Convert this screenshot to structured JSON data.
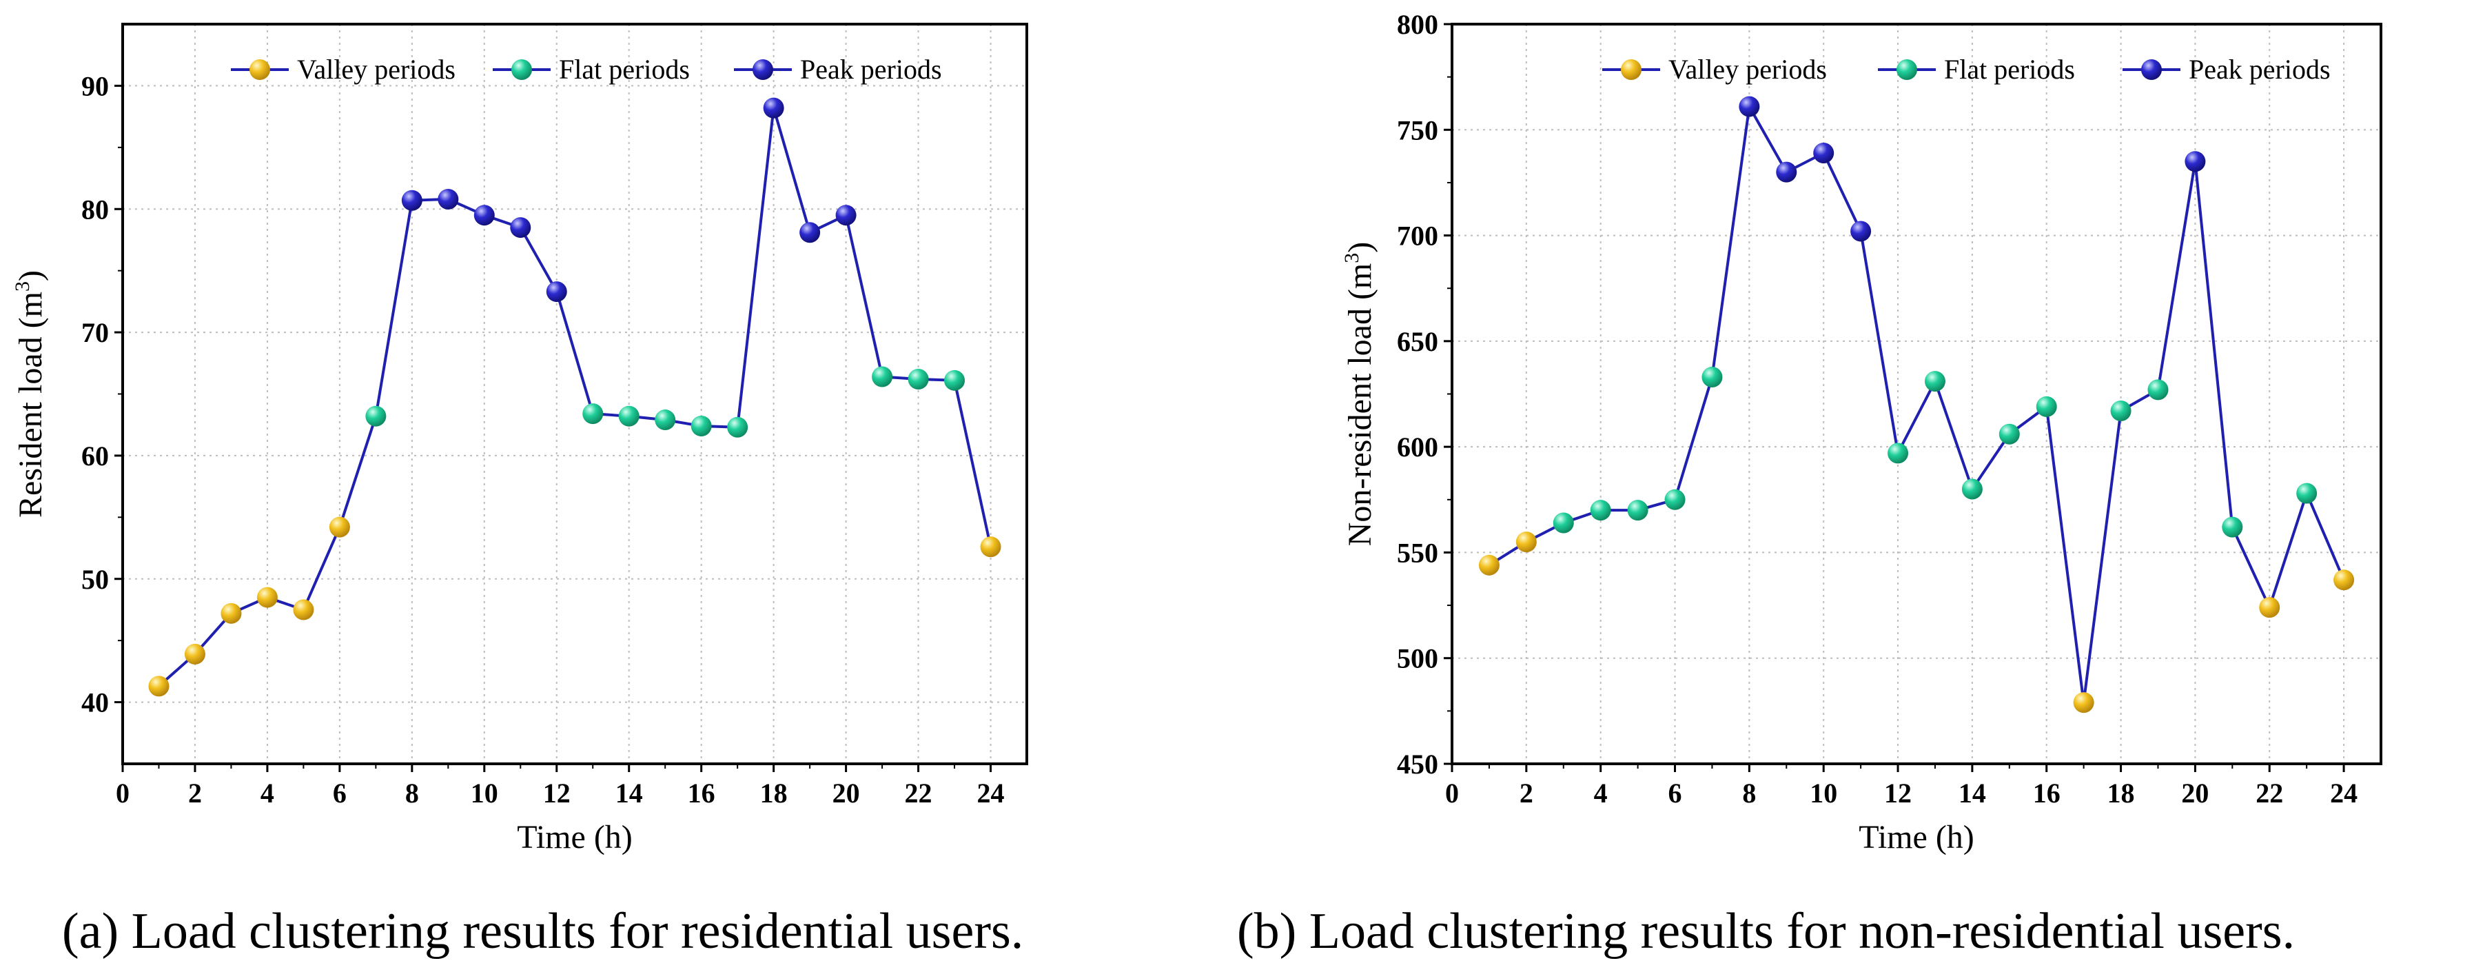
{
  "chart_data": [
    {
      "type": "line",
      "panel": "a",
      "caption": "(a) Load clustering results for residential users.",
      "xlabel": "Time (h)",
      "ylabel": "Resident load (m",
      "ylabel_sup": "3",
      "ylabel_end": ")",
      "xlim": [
        0,
        25
      ],
      "ylim": [
        35,
        95
      ],
      "xticks": [
        0,
        2,
        4,
        6,
        8,
        10,
        12,
        14,
        16,
        18,
        20,
        22,
        24
      ],
      "yticks": [
        40,
        50,
        60,
        70,
        80,
        90
      ],
      "grid": true,
      "legend_position": "top-right",
      "legend": [
        {
          "label": "Valley periods",
          "color": "#F2C01E"
        },
        {
          "label": "Flat periods",
          "color": "#1FCF9A"
        },
        {
          "label": "Peak periods",
          "color": "#2C2ACF"
        }
      ],
      "line_color": "#1F1FB0",
      "x": [
        1,
        2,
        3,
        4,
        5,
        6,
        7,
        8,
        9,
        10,
        11,
        12,
        13,
        14,
        15,
        16,
        17,
        18,
        19,
        20,
        21,
        22,
        23,
        24
      ],
      "y": [
        41.3,
        43.9,
        47.2,
        48.5,
        47.5,
        54.2,
        63.2,
        80.7,
        80.8,
        79.5,
        78.5,
        73.3,
        63.4,
        63.2,
        62.9,
        62.4,
        62.3,
        88.2,
        78.1,
        79.5,
        66.4,
        66.2,
        66.1,
        52.6
      ],
      "period": [
        "valley",
        "valley",
        "valley",
        "valley",
        "valley",
        "valley",
        "flat",
        "peak",
        "peak",
        "peak",
        "peak",
        "peak",
        "flat",
        "flat",
        "flat",
        "flat",
        "flat",
        "peak",
        "peak",
        "peak",
        "flat",
        "flat",
        "flat",
        "valley"
      ]
    },
    {
      "type": "line",
      "panel": "b",
      "caption": "(b) Load clustering results for non-residential users.",
      "xlabel": "Time (h)",
      "ylabel": "Non-resident load (m",
      "ylabel_sup": "3",
      "ylabel_end": ")",
      "xlim": [
        0,
        25
      ],
      "ylim": [
        450,
        800
      ],
      "xticks": [
        0,
        2,
        4,
        6,
        8,
        10,
        12,
        14,
        16,
        18,
        20,
        22,
        24
      ],
      "yticks": [
        450,
        500,
        550,
        600,
        650,
        700,
        750,
        800
      ],
      "grid": true,
      "legend_position": "top-right",
      "legend": [
        {
          "label": "Valley periods",
          "color": "#F2C01E"
        },
        {
          "label": "Flat periods",
          "color": "#1FCF9A"
        },
        {
          "label": "Peak periods",
          "color": "#2C2ACF"
        }
      ],
      "line_color": "#1F1FB0",
      "x": [
        1,
        2,
        3,
        4,
        5,
        6,
        7,
        8,
        9,
        10,
        11,
        12,
        13,
        14,
        15,
        16,
        17,
        18,
        19,
        20,
        21,
        22,
        23,
        24
      ],
      "y": [
        544,
        555,
        564,
        570,
        570,
        575,
        633,
        761,
        730,
        739,
        702,
        597,
        631,
        580,
        606,
        619,
        479,
        617,
        627,
        735,
        562,
        524,
        578,
        537
      ],
      "period": [
        "valley",
        "valley",
        "flat",
        "flat",
        "flat",
        "flat",
        "flat",
        "peak",
        "peak",
        "peak",
        "peak",
        "flat",
        "flat",
        "flat",
        "flat",
        "flat",
        "valley",
        "flat",
        "flat",
        "peak",
        "flat",
        "valley",
        "flat",
        "valley"
      ]
    }
  ]
}
